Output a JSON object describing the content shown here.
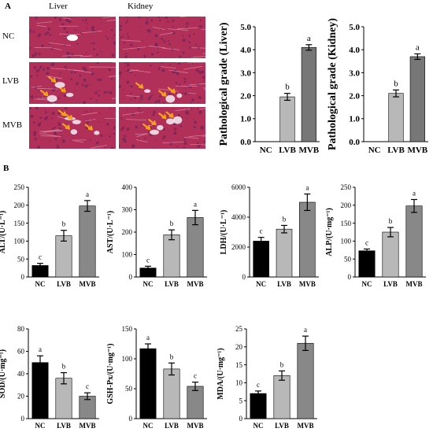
{
  "panel_labels": {
    "a": "A",
    "b": "B"
  },
  "histology": {
    "columns": [
      "Liver",
      "Kidney"
    ],
    "rows": [
      "NC",
      "LVB",
      "MVB"
    ],
    "colors": {
      "tissue": "#b0305a",
      "tissue_dark": "#7a2452",
      "lesion": "#f2a31b"
    }
  },
  "chart_data": [
    {
      "id": "liver-grade",
      "type": "bar",
      "categories": [
        "NC",
        "LVB",
        "MVB"
      ],
      "values": [
        0,
        1.95,
        4.1
      ],
      "errors": [
        0,
        0.15,
        0.12
      ],
      "letters": [
        "",
        "b",
        "a"
      ],
      "ylabel": "Pathological grade (Liver)",
      "ylim": [
        0,
        5
      ],
      "yticks": [
        "0.0",
        "1.0",
        "2.0",
        "3.0",
        "4.0",
        "5.0"
      ],
      "colors": [
        "#1a1a1a",
        "#b8b8b8",
        "#777777"
      ]
    },
    {
      "id": "kidney-grade",
      "type": "bar",
      "categories": [
        "NC",
        "LVB",
        "MVB"
      ],
      "values": [
        0,
        2.1,
        3.7
      ],
      "errors": [
        0,
        0.15,
        0.12
      ],
      "letters": [
        "",
        "b",
        "a"
      ],
      "ylabel": "Pathological grade (Kidney)",
      "ylim": [
        0,
        5
      ],
      "yticks": [
        "0.0",
        "1.0",
        "2.0",
        "3.0",
        "4.0",
        "5.0"
      ],
      "colors": [
        "#1a1a1a",
        "#b8b8b8",
        "#777777"
      ]
    },
    {
      "id": "alt",
      "type": "bar",
      "categories": [
        "NC",
        "LVB",
        "MVB"
      ],
      "values": [
        32,
        115,
        198
      ],
      "errors": [
        6,
        15,
        15
      ],
      "letters": [
        "c",
        "b",
        "a"
      ],
      "ylabel": "ALT/(U·L⁻¹)",
      "ylim": [
        0,
        250
      ],
      "yticks": [
        "0",
        "50",
        "100",
        "150",
        "200",
        "250"
      ],
      "colors": [
        "#000000",
        "#b8b8b8",
        "#888888"
      ]
    },
    {
      "id": "ast",
      "type": "bar",
      "categories": [
        "NC",
        "LVB",
        "MVB"
      ],
      "values": [
        40,
        188,
        265
      ],
      "errors": [
        8,
        22,
        32
      ],
      "letters": [
        "c",
        "b",
        "a"
      ],
      "ylabel": "AST/(U·L⁻¹)",
      "ylim": [
        0,
        400
      ],
      "yticks": [
        "0",
        "100",
        "200",
        "300",
        "400"
      ],
      "colors": [
        "#000000",
        "#b8b8b8",
        "#888888"
      ]
    },
    {
      "id": "ldh",
      "type": "bar",
      "categories": [
        "NC",
        "LVB",
        "MVB"
      ],
      "values": [
        2400,
        3200,
        5000
      ],
      "errors": [
        250,
        250,
        550
      ],
      "letters": [
        "c",
        "b",
        "a"
      ],
      "ylabel": "LDH/(U·L⁻¹)",
      "ylim": [
        0,
        6000
      ],
      "yticks": [
        "0",
        "2000",
        "4000",
        "6000"
      ],
      "colors": [
        "#000000",
        "#b8b8b8",
        "#888888"
      ]
    },
    {
      "id": "alp",
      "type": "bar",
      "categories": [
        "NC",
        "LVB",
        "MVB"
      ],
      "values": [
        73,
        125,
        198
      ],
      "errors": [
        5,
        13,
        18
      ],
      "letters": [
        "c",
        "b",
        "a"
      ],
      "ylabel": "ALP/(U·mg⁻¹)",
      "ylim": [
        0,
        250
      ],
      "yticks": [
        "0",
        "50",
        "100",
        "150",
        "200",
        "250"
      ],
      "colors": [
        "#000000",
        "#b8b8b8",
        "#888888"
      ]
    },
    {
      "id": "sod",
      "type": "bar",
      "categories": [
        "NC",
        "LVB",
        "MVB"
      ],
      "values": [
        50,
        36,
        20
      ],
      "errors": [
        6,
        5,
        3
      ],
      "letters": [
        "a",
        "b",
        "c"
      ],
      "ylabel": "SOD/(U·mg⁻¹)",
      "ylim": [
        0,
        80
      ],
      "yticks": [
        "0",
        "20",
        "40",
        "60",
        "80"
      ],
      "colors": [
        "#000000",
        "#b8b8b8",
        "#888888"
      ]
    },
    {
      "id": "gsh-px",
      "type": "bar",
      "categories": [
        "NC",
        "LVB",
        "MVB"
      ],
      "values": [
        117,
        83,
        54
      ],
      "errors": [
        8,
        10,
        7
      ],
      "letters": [
        "a",
        "b",
        "c"
      ],
      "ylabel": "GSH-Px/(U·mg⁻¹)",
      "ylim": [
        0,
        150
      ],
      "yticks": [
        "0",
        "50",
        "100",
        "150"
      ],
      "colors": [
        "#000000",
        "#b8b8b8",
        "#888888"
      ]
    },
    {
      "id": "mda",
      "type": "bar",
      "categories": [
        "NC",
        "LVB",
        "MVB"
      ],
      "values": [
        7,
        12,
        21
      ],
      "errors": [
        0.7,
        1.3,
        2
      ],
      "letters": [
        "c",
        "b",
        "a"
      ],
      "ylabel": "MDA/(U·mg⁻¹)",
      "ylim": [
        0,
        25
      ],
      "yticks": [
        "0",
        "5",
        "10",
        "15",
        "20",
        "25"
      ],
      "colors": [
        "#000000",
        "#b8b8b8",
        "#888888"
      ]
    }
  ]
}
